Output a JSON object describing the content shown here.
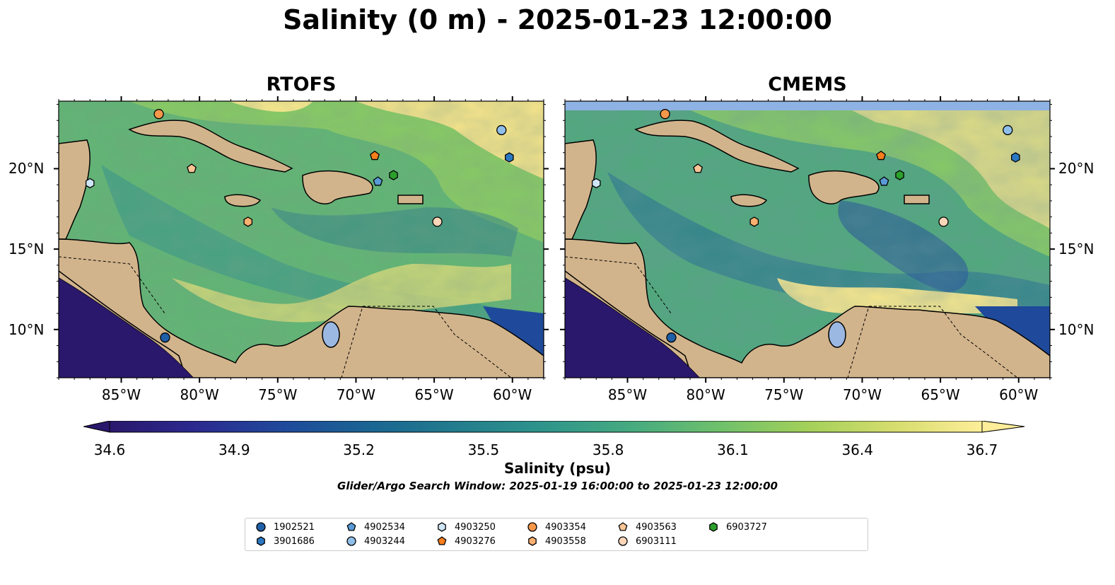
{
  "title": "Salinity (0 m) - 2025-01-23 12:00:00",
  "panels": [
    {
      "title": "RTOFS"
    },
    {
      "title": "CMEMS"
    }
  ],
  "axes": {
    "x_ticks": [
      {
        "lon": -85,
        "label": "85°W"
      },
      {
        "lon": -80,
        "label": "80°W"
      },
      {
        "lon": -75,
        "label": "75°W"
      },
      {
        "lon": -70,
        "label": "70°W"
      },
      {
        "lon": -65,
        "label": "65°W"
      },
      {
        "lon": -60,
        "label": "60°W"
      }
    ],
    "y_ticks": [
      {
        "lat": 20,
        "label": "20°N"
      },
      {
        "lat": 15,
        "label": "15°N"
      },
      {
        "lat": 10,
        "label": "10°N"
      }
    ],
    "lon_range": [
      -89,
      -58
    ],
    "lat_range": [
      7,
      24.2
    ]
  },
  "colorbar": {
    "title": "Salinity (psu)",
    "ticks": [
      "34.6",
      "34.9",
      "35.2",
      "35.5",
      "35.8",
      "36.1",
      "36.4",
      "36.7"
    ],
    "range": [
      34.6,
      36.7
    ],
    "colormap": [
      "#2a186c",
      "#2b2a8f",
      "#1f4a9b",
      "#1a6592",
      "#237d8d",
      "#2f958b",
      "#46ab80",
      "#6fc06b",
      "#a3d05a",
      "#d6dd6e",
      "#feee99"
    ]
  },
  "search_window": "Glider/Argo Search Window: 2025-01-19 16:00:00 to 2025-01-23 12:00:00",
  "colors": {
    "land": "#d2b48c",
    "cmems_missing_band": "#8fb2e4",
    "lake": "#9bb8e2"
  },
  "platforms": [
    {
      "id": "1902521",
      "marker": "circle",
      "color": "#1f5fa8",
      "lon": -82.2,
      "lat": 9.5
    },
    {
      "id": "3901686",
      "marker": "hexagon",
      "color": "#2b78c2",
      "lon": -60.2,
      "lat": 20.7
    },
    {
      "id": "4902534",
      "marker": "pentagon",
      "color": "#5b9ad6",
      "lon": -68.6,
      "lat": 19.2
    },
    {
      "id": "4903244",
      "marker": "circle",
      "color": "#8fbfe9",
      "lon": -60.7,
      "lat": 22.4
    },
    {
      "id": "4903250",
      "marker": "hexagon",
      "color": "#cfe6f6",
      "lon": -87.0,
      "lat": 19.1
    },
    {
      "id": "4903276",
      "marker": "pentagon",
      "color": "#f57e1e",
      "lon": -68.8,
      "lat": 20.8
    },
    {
      "id": "4903354",
      "marker": "circle",
      "color": "#f6974a",
      "lon": -82.6,
      "lat": 23.4
    },
    {
      "id": "4903558",
      "marker": "hexagon",
      "color": "#f9b070",
      "lon": -76.9,
      "lat": 16.7
    },
    {
      "id": "4903563",
      "marker": "pentagon",
      "color": "#fac596",
      "lon": -80.5,
      "lat": 20.0
    },
    {
      "id": "6903111",
      "marker": "circle",
      "color": "#fbd6b8",
      "lon": -64.8,
      "lat": 16.7
    },
    {
      "id": "6903727",
      "marker": "hexagon",
      "color": "#2ca02c",
      "lon": -67.6,
      "lat": 19.6
    }
  ]
}
